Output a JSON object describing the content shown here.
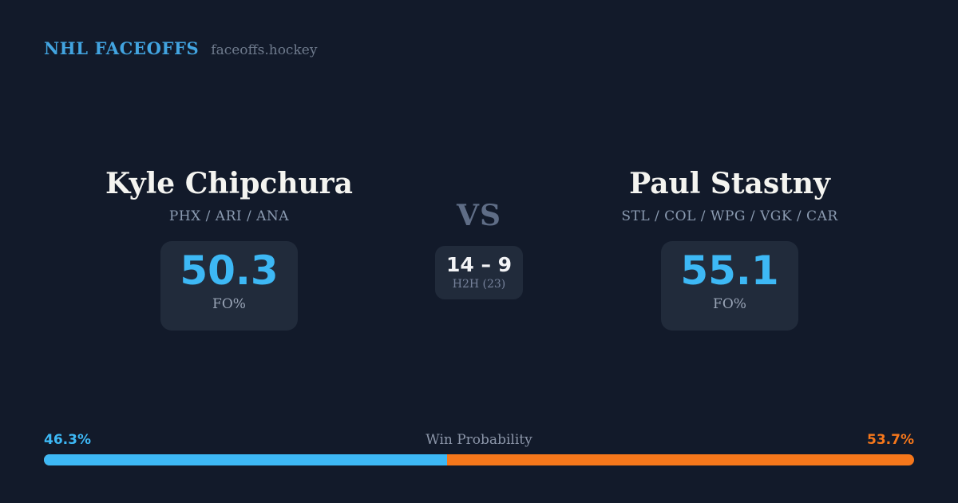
{
  "header": {
    "brand": "NHL FACEOFFS",
    "site": "faceoffs.hockey"
  },
  "left_player": {
    "name": "Kyle Chipchura",
    "teams": "PHX / ARI / ANA",
    "fo_value": "50.3",
    "fo_label": "FO%"
  },
  "right_player": {
    "name": "Paul Stastny",
    "teams": "STL / COL / WPG / VGK / CAR",
    "fo_value": "55.1",
    "fo_label": "FO%"
  },
  "versus": {
    "label": "VS",
    "h2h_score": "14 – 9",
    "h2h_label": "H2H (23)"
  },
  "win_probability": {
    "title": "Win Probability",
    "left_pct_label": "46.3%",
    "right_pct_label": "53.7%",
    "left_value": 46.3,
    "right_value": 53.7
  },
  "colors": {
    "background": "#121a2a",
    "card": "#212b3b",
    "accent_blue": "#3db8f5",
    "accent_orange": "#f5771b",
    "brand_blue": "#42a4e0",
    "text_primary": "#f4f4f0",
    "text_muted": "#8b9bb1"
  }
}
